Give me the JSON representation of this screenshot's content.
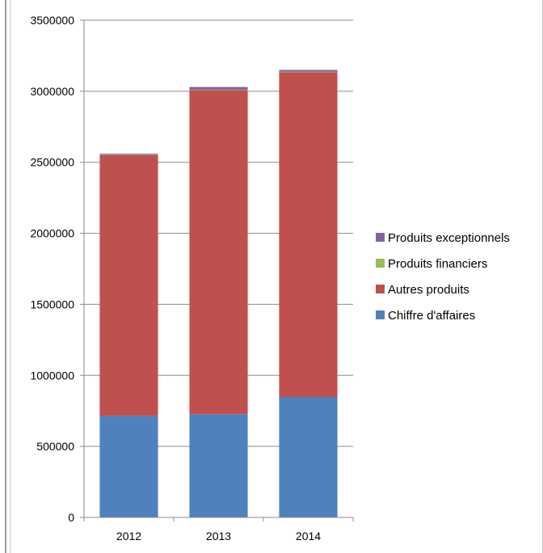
{
  "chart_data": {
    "type": "bar",
    "stacked": true,
    "title": "",
    "xlabel": "",
    "ylabel": "",
    "categories": [
      "2012",
      "2013",
      "2014"
    ],
    "ylim": [
      0,
      3500000
    ],
    "yticks": [
      0,
      500000,
      1000000,
      1500000,
      2000000,
      2500000,
      3000000,
      3500000
    ],
    "ytick_labels": [
      "0",
      "500000",
      "1000000",
      "1500000",
      "2000000",
      "2500000",
      "3000000",
      "3500000"
    ],
    "grid": true,
    "legend_position": "right",
    "series": [
      {
        "name": "Chiffre d'affaires",
        "color": "#4f81bd",
        "values": [
          715000,
          727000,
          848000
        ]
      },
      {
        "name": "Autres produits",
        "color": "#c0504d",
        "values": [
          1835000,
          2281000,
          2286000
        ]
      },
      {
        "name": "Produits financiers",
        "color": "#9bbb59",
        "values": [
          3000,
          3000,
          3000
        ]
      },
      {
        "name": "Produits exceptionnels",
        "color": "#8064a2",
        "values": [
          7000,
          19000,
          13000
        ]
      }
    ]
  }
}
